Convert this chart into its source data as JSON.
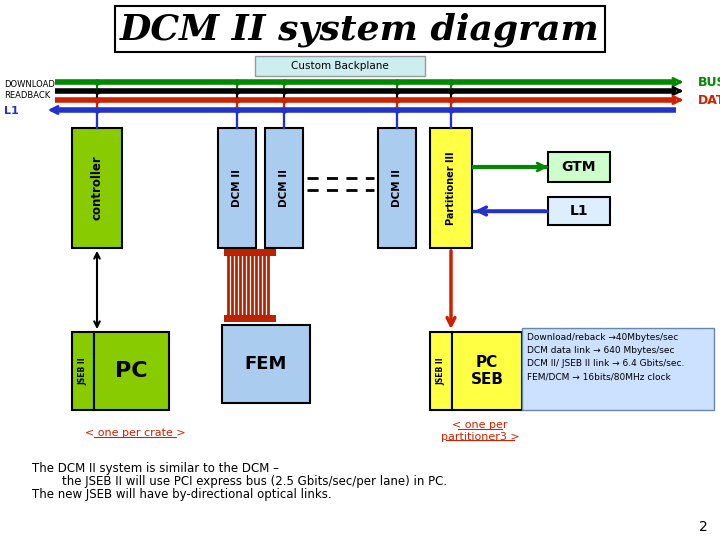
{
  "title": "DCM II system diagram",
  "background_color": "#ffffff",
  "custom_backplane_label": "Custom Backplane",
  "busy_label": "BUSY",
  "data_label": "DATA",
  "download_readback_label": "DOWNLOAD\nREADBACK",
  "l1_label": "L1",
  "gtm_label": "GTM",
  "l1_box_label": "L1",
  "controller_label": "controller",
  "dcm_ii_label": "DCM II",
  "partitioner_label": "Partitioner III",
  "pc_label": "PC",
  "jseb_label": "JSEB II",
  "fem_label": "FEM",
  "pc_seb_label": "PC\nSEB",
  "one_per_crate_label": "< one per crate >",
  "one_per_partitioner_label": "< one per\npartitioner3 >",
  "info_text": "Download/reback →40Mbytes/sec\nDCM data link → 640 Mbytes/sec\nDCM II/ JSEB II link → 6.4 Gbits/sec.\nFEM/DCM → 16bits/80MHz clock",
  "bottom_text_line1": "The DCM II system is similar to the DCM –",
  "bottom_text_line2": "        the JSEB II will use PCI express bus (2.5 Gbits/sec/per lane) in PC.",
  "bottom_text_line3": "The new JSEB will have by-directional optical links.",
  "page_number": "2",
  "color_green": "#008800",
  "color_black": "#000000",
  "color_red": "#cc2200",
  "color_blue": "#2233cc",
  "color_dark_green_box": "#88cc00",
  "color_light_blue_box": "#aaccee",
  "color_yellow_box": "#ffff44",
  "color_info_box": "#cce0ff",
  "color_backplane_box": "#cceeee",
  "color_gtm_box": "#ccffcc",
  "color_l1_box": "#ddeeff",
  "color_red_cable": "#bb2200"
}
